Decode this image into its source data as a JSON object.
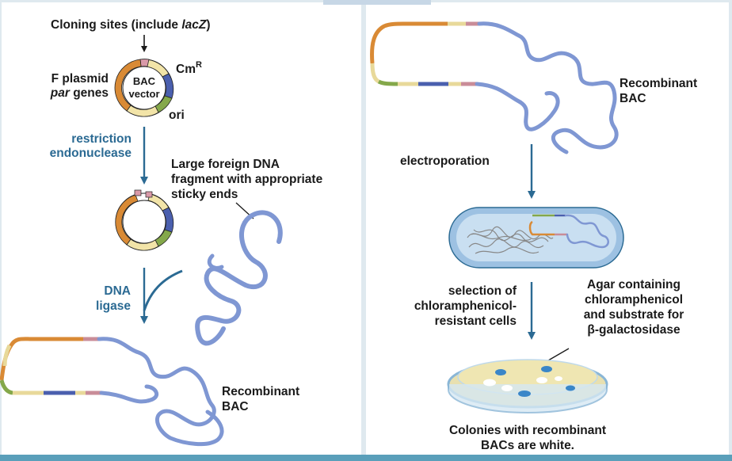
{
  "left_panel": {
    "cloning_sites_prefix": "Cloning sites (include ",
    "cloning_sites_gene": "lacZ",
    "cloning_sites_suffix": ")",
    "f_plasmid": "F plasmid",
    "par_italic": "par",
    "par_genes": " genes",
    "bac_line1": "BAC",
    "bac_line2": "vector",
    "cm": "Cm",
    "cm_sup": "R",
    "ori": "ori",
    "restriction_line1": "restriction",
    "restriction_line2": "endonuclease",
    "foreign_line1": "Large foreign DNA",
    "foreign_line2": "fragment with appropriate",
    "foreign_line3": "sticky ends",
    "dna_ligase_line1": "DNA",
    "dna_ligase_line2": "ligase",
    "recombinant_line1": "Recombinant",
    "recombinant_line2": "BAC"
  },
  "right_panel": {
    "recombinant_line1": "Recombinant",
    "recombinant_line2": "BAC",
    "electroporation": "electroporation",
    "selection_line1": "selection of",
    "selection_line2": "chloramphenicol-",
    "selection_line3": "resistant cells",
    "agar_line1": "Agar containing",
    "agar_line2": "chloramphenicol",
    "agar_line3": "and substrate for",
    "agar_line4": "β-galactosidase",
    "colonies_line1": "Colonies with recombinant",
    "colonies_line2": "BACs are white."
  },
  "colors": {
    "arrow_blue": "#2b6a93",
    "dna_blue": "#7f97d3",
    "plasmid_orange": "#d98a35",
    "plasmid_green": "#84a84a",
    "plasmid_navy": "#4a5fae",
    "plasmid_pink": "#c98c98",
    "plasmid_cream": "#f2e4a8"
  }
}
